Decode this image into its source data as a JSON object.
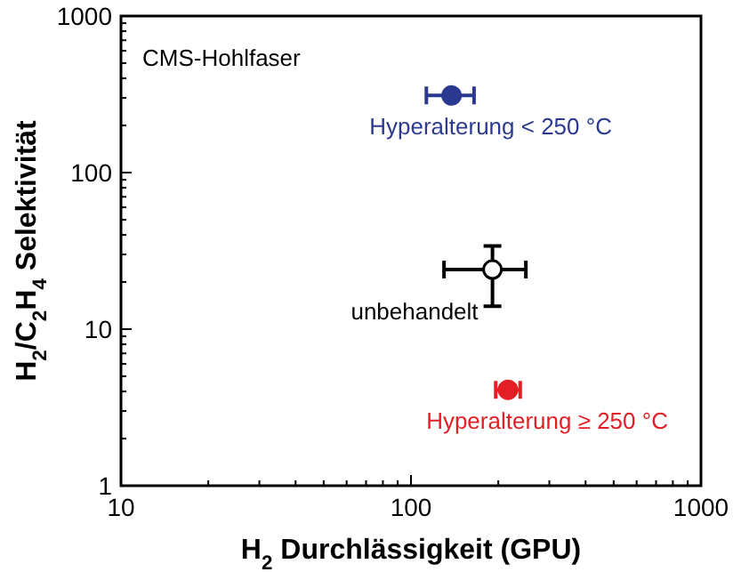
{
  "chart_data": {
    "type": "scatter",
    "xlabel": "H$_{2}$ Durchlässigkeit (GPU)",
    "ylabel": "H$_{2}$/C$_{2}$H$_{4}$ Selektivität",
    "log": "xy",
    "marker": "circle",
    "grid": false,
    "xlim": [
      10,
      1000
    ],
    "ylim": [
      1,
      1000
    ],
    "xticks": [
      10,
      {
        "value": 20,
        "label": null
      },
      {
        "value": 30,
        "label": null
      },
      {
        "value": 40,
        "label": null
      },
      {
        "value": 50,
        "label": null
      },
      {
        "value": 60,
        "label": null
      },
      {
        "value": 70,
        "label": null
      },
      {
        "value": 80,
        "label": null
      },
      {
        "value": 90,
        "label": null
      },
      100,
      {
        "value": 200,
        "label": null
      },
      {
        "value": 300,
        "label": null
      },
      {
        "value": 400,
        "label": null
      },
      {
        "value": 500,
        "label": null
      },
      {
        "value": 600,
        "label": null
      },
      {
        "value": 700,
        "label": null
      },
      {
        "value": 800,
        "label": null
      },
      {
        "value": 900,
        "label": null
      },
      1000
    ],
    "yticks": [
      1,
      {
        "value": 2,
        "label": null
      },
      {
        "value": 3,
        "label": null
      },
      {
        "value": 4,
        "label": null
      },
      {
        "value": 5,
        "label": null
      },
      {
        "value": 6,
        "label": null
      },
      {
        "value": 7,
        "label": null
      },
      {
        "value": 8,
        "label": null
      },
      {
        "value": 9,
        "label": null
      },
      10,
      {
        "value": 20,
        "label": null
      },
      {
        "value": 30,
        "label": null
      },
      {
        "value": 40,
        "label": null
      },
      {
        "value": 50,
        "label": null
      },
      {
        "value": 60,
        "label": null
      },
      {
        "value": 70,
        "label": null
      },
      {
        "value": 80,
        "label": null
      },
      {
        "value": 90,
        "label": null
      },
      100,
      {
        "value": 200,
        "label": null
      },
      {
        "value": 300,
        "label": null
      },
      {
        "value": 400,
        "label": null
      },
      {
        "value": 500,
        "label": null
      },
      {
        "value": 600,
        "label": null
      },
      {
        "value": 700,
        "label": null
      },
      {
        "value": 800,
        "label": null
      },
      {
        "value": 900,
        "label": null
      },
      1000
    ],
    "annotations": [
      "CMS-Hohlfaser"
    ],
    "series": [
      {
        "name": "Hyperalterung < 250 °C",
        "color": "#2b3990",
        "x": [
          138
        ],
        "values": [
          311
        ],
        "xerrors": [
          [
            113,
            165
          ]
        ]
      },
      {
        "name": "unbehandelt",
        "color": "#ffffff",
        "x": [
          191
        ],
        "values": [
          24
        ],
        "xerrors": [
          [
            130,
            249
          ]
        ],
        "errors": [
          [
            14,
            34
          ]
        ]
      },
      {
        "name": "Hyperalterung ≥ 250 °C",
        "color": "#e31e24",
        "x": [
          216
        ],
        "values": [
          4.1
        ],
        "xerrors": [
          [
            196,
            238
          ]
        ]
      }
    ]
  }
}
